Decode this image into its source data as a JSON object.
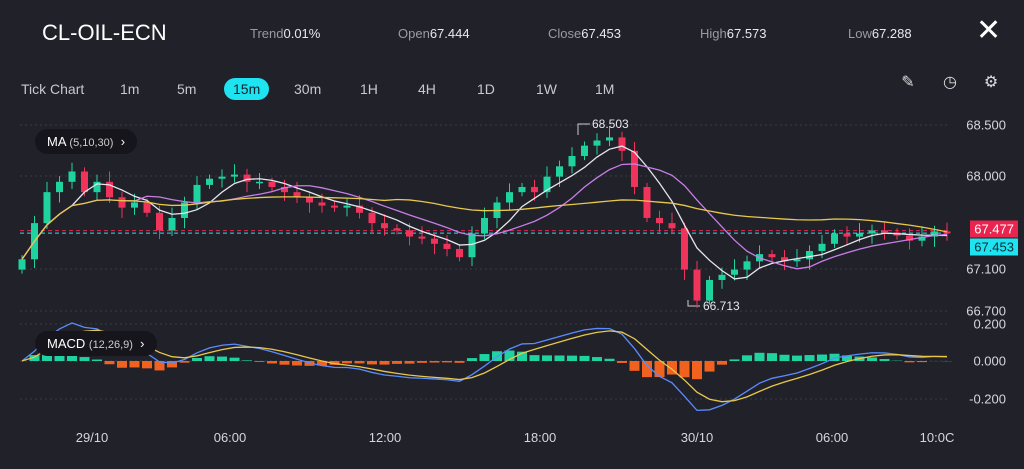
{
  "header": {
    "symbol": "CL-OIL-ECN",
    "stats": [
      {
        "label": "Trend",
        "value": "0.01%"
      },
      {
        "label": "Open",
        "value": "67.444"
      },
      {
        "label": "Close",
        "value": "67.453"
      },
      {
        "label": "High",
        "value": "67.573"
      },
      {
        "label": "Low",
        "value": "67.288"
      }
    ],
    "close_icon": "close-icon"
  },
  "timeframes": [
    "Tick Chart",
    "1m",
    "5m",
    "15m",
    "30m",
    "1H",
    "4H",
    "1D",
    "1W",
    "1M"
  ],
  "active_timeframe": "15m",
  "tools": [
    "pencil-icon",
    "timer-icon",
    "settings-icon"
  ],
  "indicators": {
    "ma": {
      "name": "MA",
      "params": "(5,10,30)"
    },
    "macd": {
      "name": "MACD",
      "params": "(12,26,9)"
    }
  },
  "price_axis": [
    "68.500",
    "68.000",
    "67.100",
    "66.700"
  ],
  "macd_axis": [
    "0.200",
    "0.000",
    "-0.200"
  ],
  "time_axis": [
    "29/10",
    "06:00",
    "12:00",
    "18:00",
    "30/10",
    "06:00",
    "10:0C"
  ],
  "annotations": {
    "high": "68.503",
    "low": "66.713"
  },
  "tags": {
    "current": "67.477",
    "close": "67.453"
  },
  "colors": {
    "up": "#1fd3a0",
    "down": "#f0335a",
    "ma5": "#e6e6f0",
    "ma10": "#c77ee8",
    "ma30": "#e8c84a",
    "macd": "#5a8cff",
    "signal": "#e8c84a",
    "accent": "#1ee3f0"
  },
  "chart_data": {
    "type": "candlestick",
    "closes": [
      67.2,
      67.55,
      67.85,
      67.95,
      68.05,
      67.85,
      67.95,
      67.8,
      67.7,
      67.75,
      67.65,
      67.48,
      67.6,
      67.75,
      67.92,
      67.98,
      68.0,
      68.02,
      67.95,
      67.95,
      67.9,
      67.85,
      67.8,
      67.75,
      67.72,
      67.7,
      67.72,
      67.65,
      67.55,
      67.5,
      67.48,
      67.42,
      67.4,
      67.35,
      67.3,
      67.22,
      67.45,
      67.6,
      67.75,
      67.85,
      67.9,
      67.85,
      68.0,
      68.1,
      68.2,
      68.3,
      68.35,
      68.38,
      68.25,
      67.9,
      67.6,
      67.55,
      67.5,
      67.1,
      66.8,
      67.0,
      67.05,
      67.1,
      67.18,
      67.25,
      67.22,
      67.18,
      67.2,
      67.28,
      67.35,
      67.45,
      67.42,
      67.45,
      67.48,
      67.46,
      67.43,
      67.38,
      67.42,
      67.47,
      67.45
    ],
    "ylim": [
      66.7,
      68.5
    ]
  }
}
